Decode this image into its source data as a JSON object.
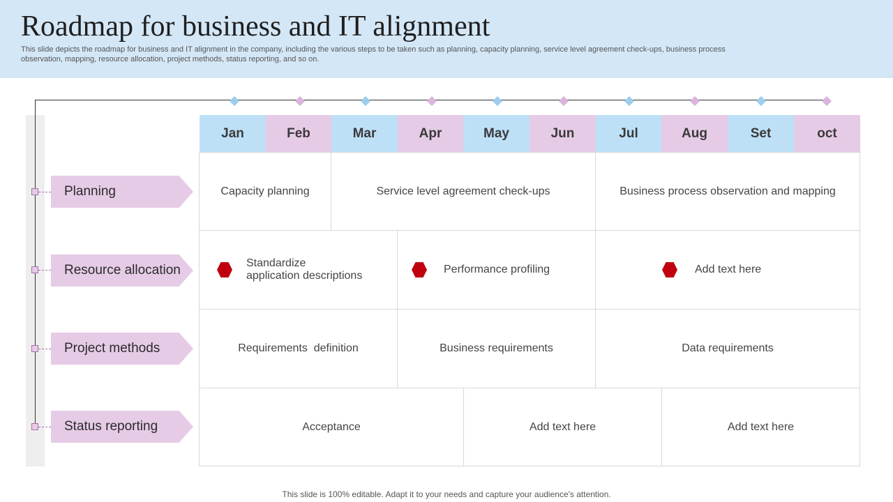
{
  "title": "Roadmap for business and IT alignment",
  "subtitle": "This slide depicts the roadmap for business and IT alignment in the company, including the various steps to be taken such as planning, capacity planning, service level agreement check-ups, business process observation, mapping, resource allocation, project methods, status reporting, and so on.",
  "months": [
    "Jan",
    "Feb",
    "Mar",
    "Apr",
    "May",
    "Jun",
    "Jul",
    "Aug",
    "Set",
    "oct"
  ],
  "rows": [
    "Planning",
    "Resource allocation",
    "Project methods",
    "Status reporting"
  ],
  "planning": {
    "c1": "Capacity planning",
    "c2": "Service level agreement check-ups",
    "c3": "Business process observation and mapping"
  },
  "resource": {
    "c1": "Standardize\napplication descriptions",
    "c2": "Performance profiling",
    "c3": "Add text here"
  },
  "project": {
    "c1": "Requirements  definition",
    "c2": "Business requirements",
    "c3": "Data requirements"
  },
  "status": {
    "c1": "Acceptance",
    "c2": "Add text here",
    "c3": "Add text here"
  },
  "footer": "This slide is 100% editable. Adapt it to your needs and capture your audience's attention.",
  "colors": {
    "header_bg": "#d4e7f6",
    "month_blue": "#bde0f7",
    "month_pink": "#e6cbe6",
    "hexagon_red": "#c00010"
  },
  "icons": [
    "hexagon-icon"
  ]
}
